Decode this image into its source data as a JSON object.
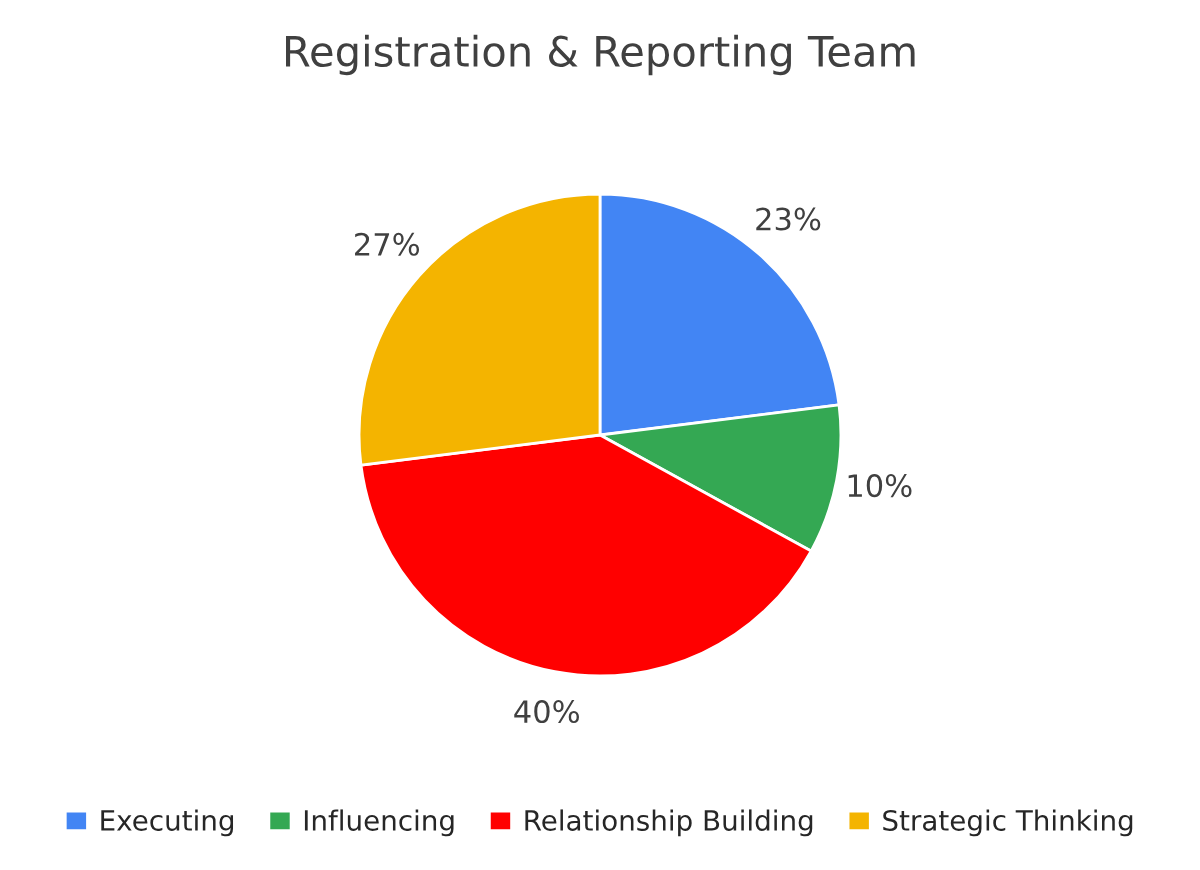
{
  "chart_data": {
    "type": "pie",
    "title": "Registration & Reporting Team",
    "categories": [
      "Executing",
      "Influencing",
      "Relationship Building",
      "Strategic Thinking"
    ],
    "values": [
      23,
      10,
      40,
      27
    ],
    "colors": [
      "#4285f4",
      "#34a853",
      "#ff0000",
      "#f4b400"
    ],
    "value_labels": [
      "23%",
      "10%",
      "40%",
      "27%"
    ],
    "legend": "bottom"
  }
}
